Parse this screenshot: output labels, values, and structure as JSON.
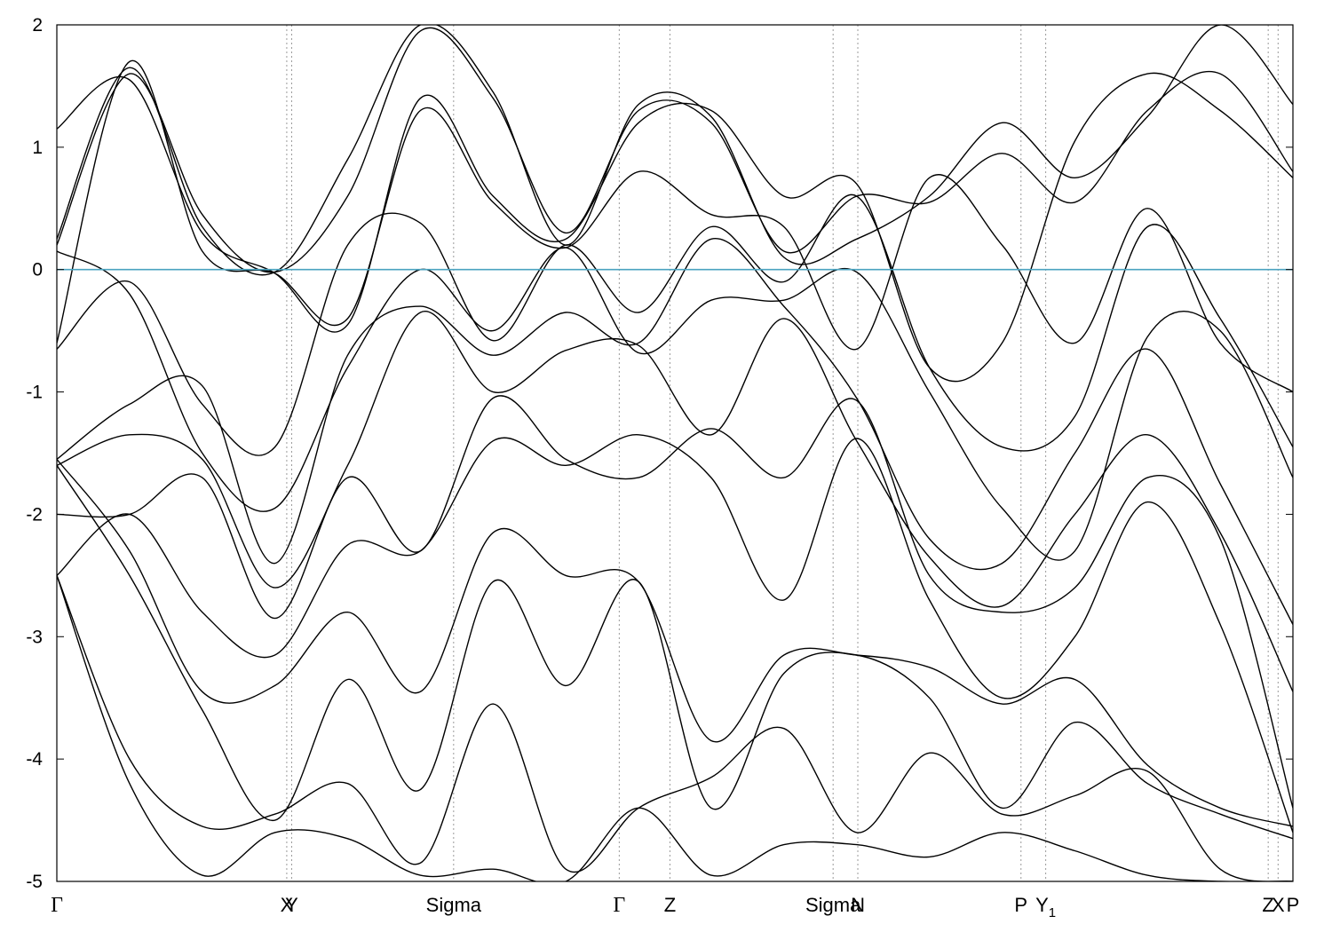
{
  "chart_data": {
    "type": "line",
    "title": "",
    "xlabel": "",
    "ylabel": "",
    "ylim": [
      -5,
      2
    ],
    "y_ticks": [
      {
        "value": 2,
        "label": "2"
      },
      {
        "value": 1,
        "label": "1"
      },
      {
        "value": 0,
        "label": "0"
      },
      {
        "value": -1,
        "label": "-1"
      },
      {
        "value": -2,
        "label": "-2"
      },
      {
        "value": -3,
        "label": "-3"
      },
      {
        "value": -4,
        "label": "-4"
      },
      {
        "value": -5,
        "label": "-5"
      }
    ],
    "xlim": [
      0,
      1.0
    ],
    "k_points": [
      {
        "x": 0.0,
        "label": "Γ",
        "greek": true
      },
      {
        "x": 0.186,
        "label": "X",
        "greek": false
      },
      {
        "x": 0.19,
        "label": "Y",
        "greek": false
      },
      {
        "x": 0.321,
        "label": "Sigma",
        "greek": false
      },
      {
        "x": 0.455,
        "label": "Γ",
        "greek": true
      },
      {
        "x": 0.496,
        "label": "Z",
        "greek": false
      },
      {
        "x": 0.628,
        "label": "Sigma",
        "greek": false
      },
      {
        "x": 0.648,
        "label": "N",
        "greek": false
      },
      {
        "x": 0.78,
        "label": "P",
        "greek": false
      },
      {
        "x": 0.8,
        "label": "Y",
        "sub": "1",
        "greek": false
      },
      {
        "x": 0.98,
        "label": "Z",
        "greek": false
      },
      {
        "x": 0.988,
        "label": "X",
        "greek": false
      },
      {
        "x": 1.0,
        "label": "P",
        "greek": false
      }
    ],
    "grid": "vertical dotted lines at k-points",
    "legend": "none",
    "fermi_level": {
      "value": 0,
      "color": "#4aa3c0"
    },
    "band_color": "#000000",
    "series": [
      {
        "y": [
          0.25,
          1.65,
          0.35,
          -0.02,
          0.9,
          2.0,
          1.45,
          0.2,
          1.35,
          1.25,
          0.1,
          0.25,
          0.6,
          1.2,
          0.75,
          1.25,
          2.0,
          1.35
        ]
      },
      {
        "y": [
          0.2,
          1.6,
          0.45,
          -0.02,
          0.6,
          1.95,
          1.4,
          0.3,
          1.3,
          1.2,
          0.15,
          0.6,
          0.55,
          0.95,
          0.55,
          1.3,
          1.6,
          0.8
        ]
      },
      {
        "y": [
          1.15,
          1.55,
          0.3,
          -0.03,
          -0.45,
          1.4,
          0.6,
          0.25,
          1.2,
          1.3,
          0.6,
          0.7,
          -0.8,
          -0.6,
          1.05,
          1.6,
          1.3,
          0.75
        ]
      },
      {
        "y": [
          -0.6,
          1.7,
          0.15,
          -0.03,
          -0.4,
          1.3,
          0.55,
          0.18,
          0.8,
          0.45,
          0.35,
          -0.65,
          0.75,
          0.2,
          -0.6,
          0.5,
          -0.6,
          -1.0
        ]
      },
      {
        "y": [
          -0.65,
          -0.1,
          -1.1,
          -1.45,
          0.2,
          0.38,
          -0.58,
          0.2,
          -0.35,
          0.35,
          -0.1,
          0.6,
          -0.8,
          -1.45,
          -1.2,
          0.35,
          -0.4,
          -1.45
        ]
      },
      {
        "y": [
          0.15,
          -0.2,
          -1.5,
          -1.95,
          -0.8,
          0.0,
          -0.5,
          0.18,
          -0.68,
          -0.25,
          -0.25,
          -0.02,
          -1.0,
          -1.95,
          -2.3,
          -0.55,
          -0.5,
          -1.7
        ]
      },
      {
        "y": [
          -1.55,
          -1.1,
          -0.95,
          -2.4,
          -0.7,
          -0.3,
          -0.7,
          -0.35,
          -0.6,
          0.25,
          -0.3,
          -1.05,
          -2.2,
          -2.4,
          -1.5,
          -0.65,
          -1.75,
          -2.9
        ]
      },
      {
        "y": [
          -1.6,
          -1.35,
          -1.55,
          -2.6,
          -1.6,
          -0.35,
          -1.0,
          -0.66,
          -0.62,
          -1.35,
          -0.4,
          -1.4,
          -2.35,
          -2.75,
          -2.0,
          -1.35,
          -2.15,
          -3.45
        ]
      },
      {
        "y": [
          -2.0,
          -2.0,
          -1.7,
          -2.85,
          -1.7,
          -2.3,
          -1.05,
          -1.55,
          -1.7,
          -1.3,
          -1.7,
          -1.07,
          -2.5,
          -2.8,
          -2.6,
          -1.7,
          -2.2,
          -4.4
        ]
      },
      {
        "y": [
          -2.5,
          -2.0,
          -2.8,
          -3.15,
          -2.25,
          -2.3,
          -1.4,
          -1.6,
          -1.35,
          -1.7,
          -2.7,
          -1.38,
          -2.7,
          -3.5,
          -3.0,
          -1.9,
          -2.9,
          -4.6
        ]
      },
      {
        "y": [
          -1.55,
          -2.3,
          -3.45,
          -3.4,
          -2.8,
          -3.45,
          -2.15,
          -2.5,
          -2.55,
          -3.85,
          -3.15,
          -3.15,
          -3.25,
          -3.55,
          -3.35,
          -4.05,
          -4.4,
          -4.55
        ]
      },
      {
        "y": [
          -1.6,
          -2.5,
          -3.6,
          -4.5,
          -3.35,
          -4.25,
          -2.55,
          -3.4,
          -2.55,
          -4.4,
          -3.3,
          -3.15,
          -3.5,
          -4.4,
          -3.7,
          -4.2,
          -4.45,
          -4.65
        ]
      },
      {
        "y": [
          -2.5,
          -4.0,
          -4.55,
          -4.45,
          -4.2,
          -4.85,
          -3.55,
          -4.9,
          -4.4,
          -4.15,
          -3.75,
          -4.6,
          -3.95,
          -4.45,
          -4.3,
          -4.1,
          -4.9,
          -5.0
        ]
      },
      {
        "y": [
          -2.5,
          -4.2,
          -4.95,
          -4.6,
          -4.65,
          -4.95,
          -4.9,
          -5.0,
          -4.4,
          -4.95,
          -4.7,
          -4.7,
          -4.8,
          -4.6,
          -4.75,
          -4.95,
          -5.0,
          -5.0
        ]
      }
    ]
  }
}
